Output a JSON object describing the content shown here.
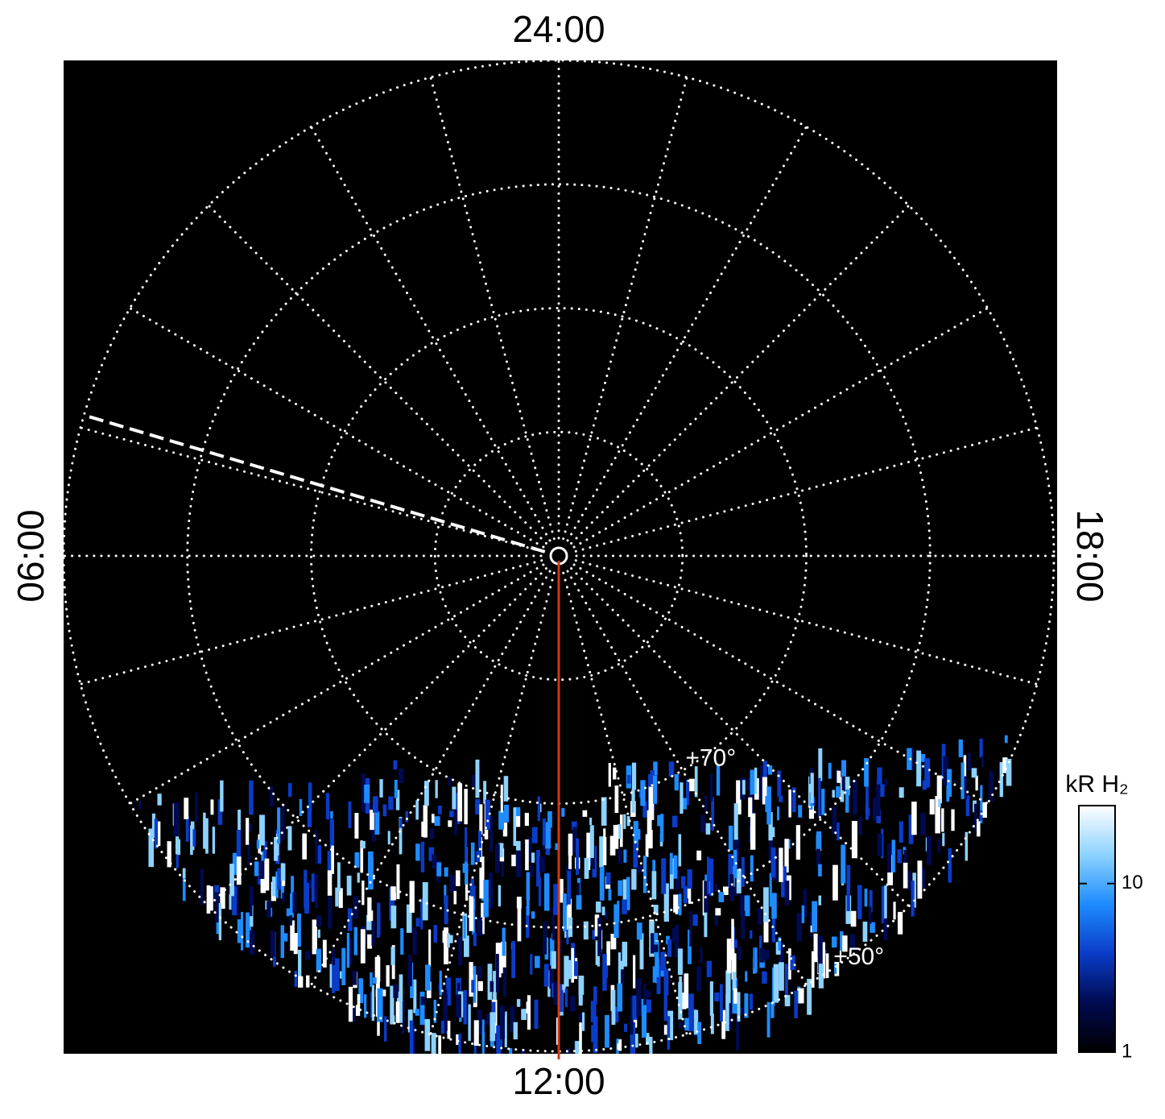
{
  "chart_data": {
    "type": "polar_map",
    "xticks": [
      {
        "value": 24,
        "label": "24:00"
      },
      {
        "value": 6,
        "label": "06:00"
      },
      {
        "value": 12,
        "label": "12:00"
      },
      {
        "value": 18,
        "label": "18:00"
      }
    ],
    "xgrid": [
      0,
      1,
      2,
      3,
      4,
      5,
      6,
      7,
      8,
      9,
      10,
      11,
      12,
      13,
      14,
      15,
      16,
      17,
      18,
      19,
      20,
      21,
      22,
      23
    ],
    "rlim": [
      90,
      50
    ],
    "rgrid": [
      80,
      70,
      60,
      50
    ],
    "rticks": [
      {
        "value": 70,
        "label": "+70°"
      },
      {
        "value": 50,
        "label": "+50°"
      }
    ],
    "marked_lines": [
      {
        "lt": 12,
        "color": "#d03a10",
        "style": "solid"
      },
      {
        "lt": 4.9,
        "color": "#ffffff",
        "style": "dashed"
      }
    ],
    "colorbar": {
      "label": "kR H₂",
      "log": true,
      "ylim": [
        1,
        29
      ],
      "yticks": [
        1,
        10
      ],
      "colormap": [
        "#000000",
        "#000a50",
        "#0a3cc8",
        "#1e8cff",
        "#8cd2ff",
        "#ffffff"
      ]
    }
  }
}
